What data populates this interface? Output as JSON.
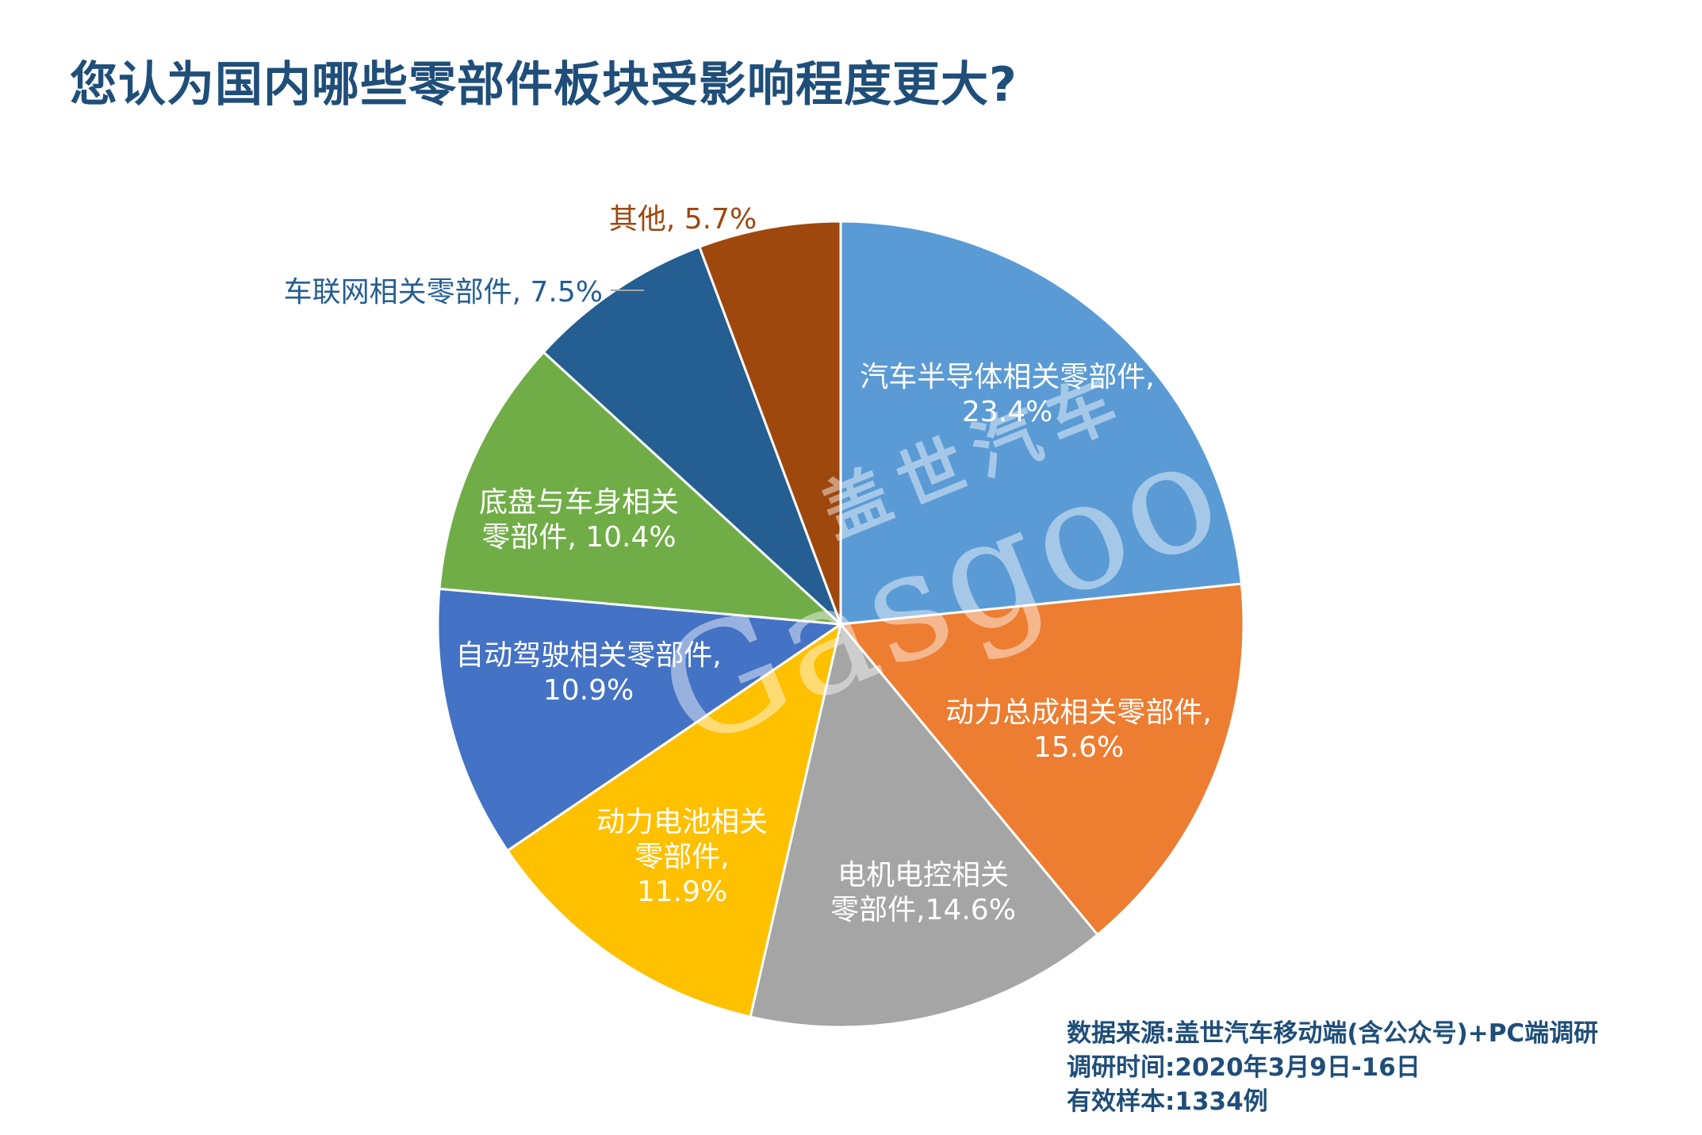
{
  "title": "您认为国内哪些零部件板块受影响程度更大?",
  "chart_data": {
    "type": "pie",
    "title": "您认为国内哪些零部件板块受影响程度更大?",
    "unit": "%",
    "start": "12 o'clock",
    "direction": "clockwise",
    "slices": [
      {
        "name": "汽车半导体相关零部件",
        "value": 23.4,
        "label_lines": [
          "汽车半导体相关零部件,",
          "23.4%"
        ],
        "color": "#5b9bd5",
        "label_color": "#ffffff"
      },
      {
        "name": "动力总成相关零部件",
        "value": 15.6,
        "label_lines": [
          "动力总成相关零部件,",
          "15.6%"
        ],
        "color": "#ed7d31",
        "label_color": "#ffffff"
      },
      {
        "name": "电机电控相关零部件",
        "value": 14.6,
        "label_lines": [
          "电机电控相关",
          "零部件,14.6%"
        ],
        "color": "#a5a5a5",
        "label_color": "#ffffff"
      },
      {
        "name": "动力电池相关零部件",
        "value": 11.9,
        "label_lines": [
          "动力电池相关",
          "零部件,",
          "11.9%"
        ],
        "color": "#ffc000",
        "label_color": "#ffffff"
      },
      {
        "name": "自动驾驶相关零部件",
        "value": 10.9,
        "label_lines": [
          "自动驾驶相关零部件,",
          "10.9%"
        ],
        "color": "#4472c4",
        "label_color": "#ffffff"
      },
      {
        "name": "底盘与车身相关零部件",
        "value": 10.4,
        "label_lines": [
          "底盘与车身相关",
          "零部件, 10.4%"
        ],
        "color": "#70ad47",
        "label_color": "#ffffff"
      },
      {
        "name": "车联网相关零部件",
        "value": 7.5,
        "label_lines": [
          "车联网相关零部件, 7.5%"
        ],
        "color": "#255e91",
        "label_color": "#255e91",
        "outside": true
      },
      {
        "name": "其他",
        "value": 5.7,
        "label_lines": [
          "其他, 5.7%"
        ],
        "color": "#9e480e",
        "label_color": "#9e480e",
        "outside": true
      }
    ]
  },
  "watermark": {
    "chinese": "盖世汽车",
    "latin": "Gasgoo"
  },
  "source": {
    "line1": "数据来源:盖世汽车移动端(含公众号)+PC端调研",
    "line2": "调研时间:2020年3月9日-16日",
    "line3": "有效样本:1334例"
  }
}
